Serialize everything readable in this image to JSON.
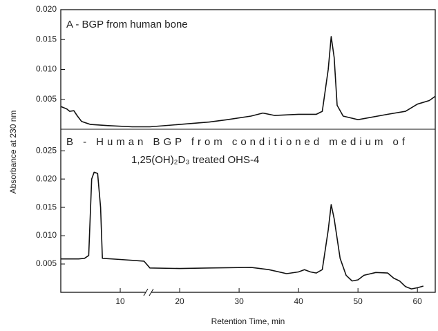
{
  "chart_data": [
    {
      "type": "line",
      "title": "A - BGP from human bone",
      "y_label": "Absorbance at 230 nm",
      "color": "#111111",
      "x": [
        0,
        1,
        1.5,
        2.2,
        2.8,
        3.5,
        5,
        8,
        12,
        15,
        20,
        25,
        28,
        32,
        34,
        36,
        40,
        43,
        44,
        45,
        45.5,
        46,
        46.5,
        47.5,
        50,
        55,
        58,
        60,
        62,
        63
      ],
      "values": [
        0.0038,
        0.0034,
        0.003,
        0.0031,
        0.0022,
        0.0013,
        0.0008,
        0.0006,
        0.0004,
        0.0004,
        0.0008,
        0.0012,
        0.0016,
        0.0022,
        0.0027,
        0.0023,
        0.0025,
        0.0025,
        0.003,
        0.01,
        0.0155,
        0.012,
        0.004,
        0.0022,
        0.0016,
        0.0025,
        0.003,
        0.0042,
        0.0048,
        0.0055
      ],
      "xlim": [
        0,
        63
      ],
      "ylim": [
        0,
        0.02
      ],
      "yticks": [
        {
          "value": 0.02,
          "label": "0.020"
        },
        0.015,
        {
          "value": 0.01,
          "label": "0.010"
        },
        0.005
      ]
    },
    {
      "type": "line",
      "title": [
        "B  -  Human  BGP  from  conditioned  medium  of",
        "1,25(OH)₂D₃ treated OHS-4"
      ],
      "x_label": "Retention Time, min",
      "color": "#111111",
      "x": [
        0,
        3,
        4,
        4.7,
        5.2,
        5.6,
        6.2,
        6.7,
        7,
        10,
        14,
        15,
        20,
        25,
        32,
        35,
        38,
        40,
        41,
        42,
        43,
        44,
        45,
        45.5,
        46,
        47,
        48,
        49,
        50,
        51,
        53,
        55,
        56,
        57,
        58,
        59,
        60,
        61
      ],
      "values": [
        0.0059,
        0.0059,
        0.006,
        0.0065,
        0.02,
        0.0212,
        0.021,
        0.015,
        0.006,
        0.0058,
        0.0055,
        0.0043,
        0.0042,
        0.0043,
        0.0044,
        0.004,
        0.0033,
        0.0036,
        0.004,
        0.0036,
        0.0034,
        0.004,
        0.011,
        0.0155,
        0.013,
        0.006,
        0.003,
        0.002,
        0.0022,
        0.003,
        0.0035,
        0.0034,
        0.0025,
        0.002,
        0.001,
        0.0006,
        0.0008,
        0.0011
      ],
      "xlim": [
        0,
        63
      ],
      "ylim": [
        0,
        0.0288
      ],
      "xticks": [
        10,
        20,
        30,
        40,
        50,
        60
      ],
      "yticks": [
        0.025,
        {
          "value": 0.02,
          "label": "0.020"
        },
        0.015,
        {
          "value": 0.01,
          "label": "0.010"
        },
        0.005
      ]
    }
  ]
}
